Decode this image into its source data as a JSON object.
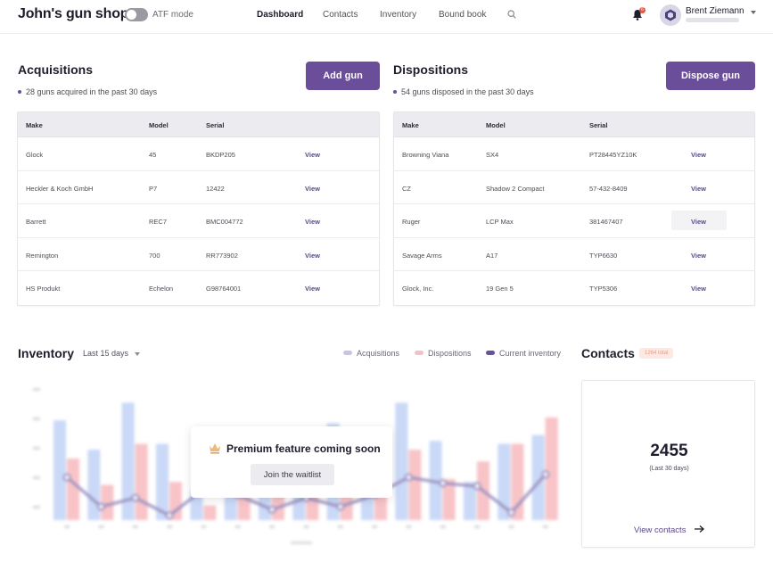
{
  "header": {
    "title": "John's gun shop",
    "atf_label": "ATF mode",
    "nav": [
      "Dashboard",
      "Contacts",
      "Inventory",
      "Bound book"
    ],
    "notifications": "6",
    "user_name": "Brent Ziemann"
  },
  "acquisitions": {
    "title": "Acquisitions",
    "subtitle": "28 guns acquired in the past 30 days",
    "button": "Add gun",
    "columns": [
      "Make",
      "Model",
      "Serial"
    ],
    "rows": [
      {
        "make": "Glock",
        "model": "45",
        "serial": "BKDP205",
        "action": "View"
      },
      {
        "make": "Heckler & Koch GmbH",
        "model": "P7",
        "serial": "12422",
        "action": "View"
      },
      {
        "make": "Barrett",
        "model": "REC7",
        "serial": "BMC004772",
        "action": "View"
      },
      {
        "make": "Remington",
        "model": "700",
        "serial": "RR773902",
        "action": "View"
      },
      {
        "make": "HS Produkt",
        "model": "Echelon",
        "serial": "G98764001",
        "action": "View"
      }
    ]
  },
  "dispositions": {
    "title": "Dispositions",
    "subtitle": "54 guns disposed in the past 30 days",
    "button": "Dispose gun",
    "columns": [
      "Make",
      "Model",
      "Serial"
    ],
    "rows": [
      {
        "make": "Browning Viana",
        "model": "SX4",
        "serial": "PT28445YZ10K",
        "action": "View"
      },
      {
        "make": "CZ",
        "model": "Shadow 2 Compact",
        "serial": "57-432-8409",
        "action": "View"
      },
      {
        "make": "Ruger",
        "model": "LCP Max",
        "serial": "381467407",
        "action": "View"
      },
      {
        "make": "Savage Arms",
        "model": "A17",
        "serial": "TYP6630",
        "action": "View"
      },
      {
        "make": "Glock, Inc.",
        "model": "19 Gen 5",
        "serial": "TYP5306",
        "action": "View"
      }
    ]
  },
  "inventory": {
    "title": "Inventory",
    "range": "Last 15 days",
    "legend": [
      "Acquisitions",
      "Dispositions",
      "Current inventory"
    ],
    "premium_title": "Premium feature coming soon",
    "premium_button": "Join the waitlist"
  },
  "colors": {
    "accent": "#6a4e99",
    "acquisitions": "#c9d9f7",
    "dispositions": "#f8c4c8",
    "current_inventory": "#7b68a8"
  },
  "chart_data": {
    "type": "bar",
    "categories": [
      "",
      "",
      "",
      "",
      "",
      "",
      "",
      "",
      "",
      "",
      "",
      "",
      "",
      "",
      ""
    ],
    "series": [
      {
        "name": "Acquisitions",
        "values": [
          68,
          48,
          80,
          52,
          20,
          34,
          26,
          46,
          66,
          32,
          80,
          54,
          26,
          52,
          58
        ]
      },
      {
        "name": "Dispositions",
        "values": [
          42,
          24,
          52,
          26,
          10,
          16,
          24,
          38,
          28,
          20,
          48,
          28,
          40,
          52,
          70
        ]
      },
      {
        "name": "Current inventory",
        "values": [
          34,
          14,
          20,
          8,
          26,
          22,
          12,
          20,
          14,
          22,
          34,
          30,
          28,
          10,
          36
        ]
      }
    ],
    "ylim": [
      0,
      90
    ],
    "grid": false,
    "legend": "top-right"
  },
  "contacts": {
    "title": "Contacts",
    "badge": "1264 total",
    "count": "2455",
    "sub": "(Last 30 days)",
    "link": "View contacts"
  }
}
